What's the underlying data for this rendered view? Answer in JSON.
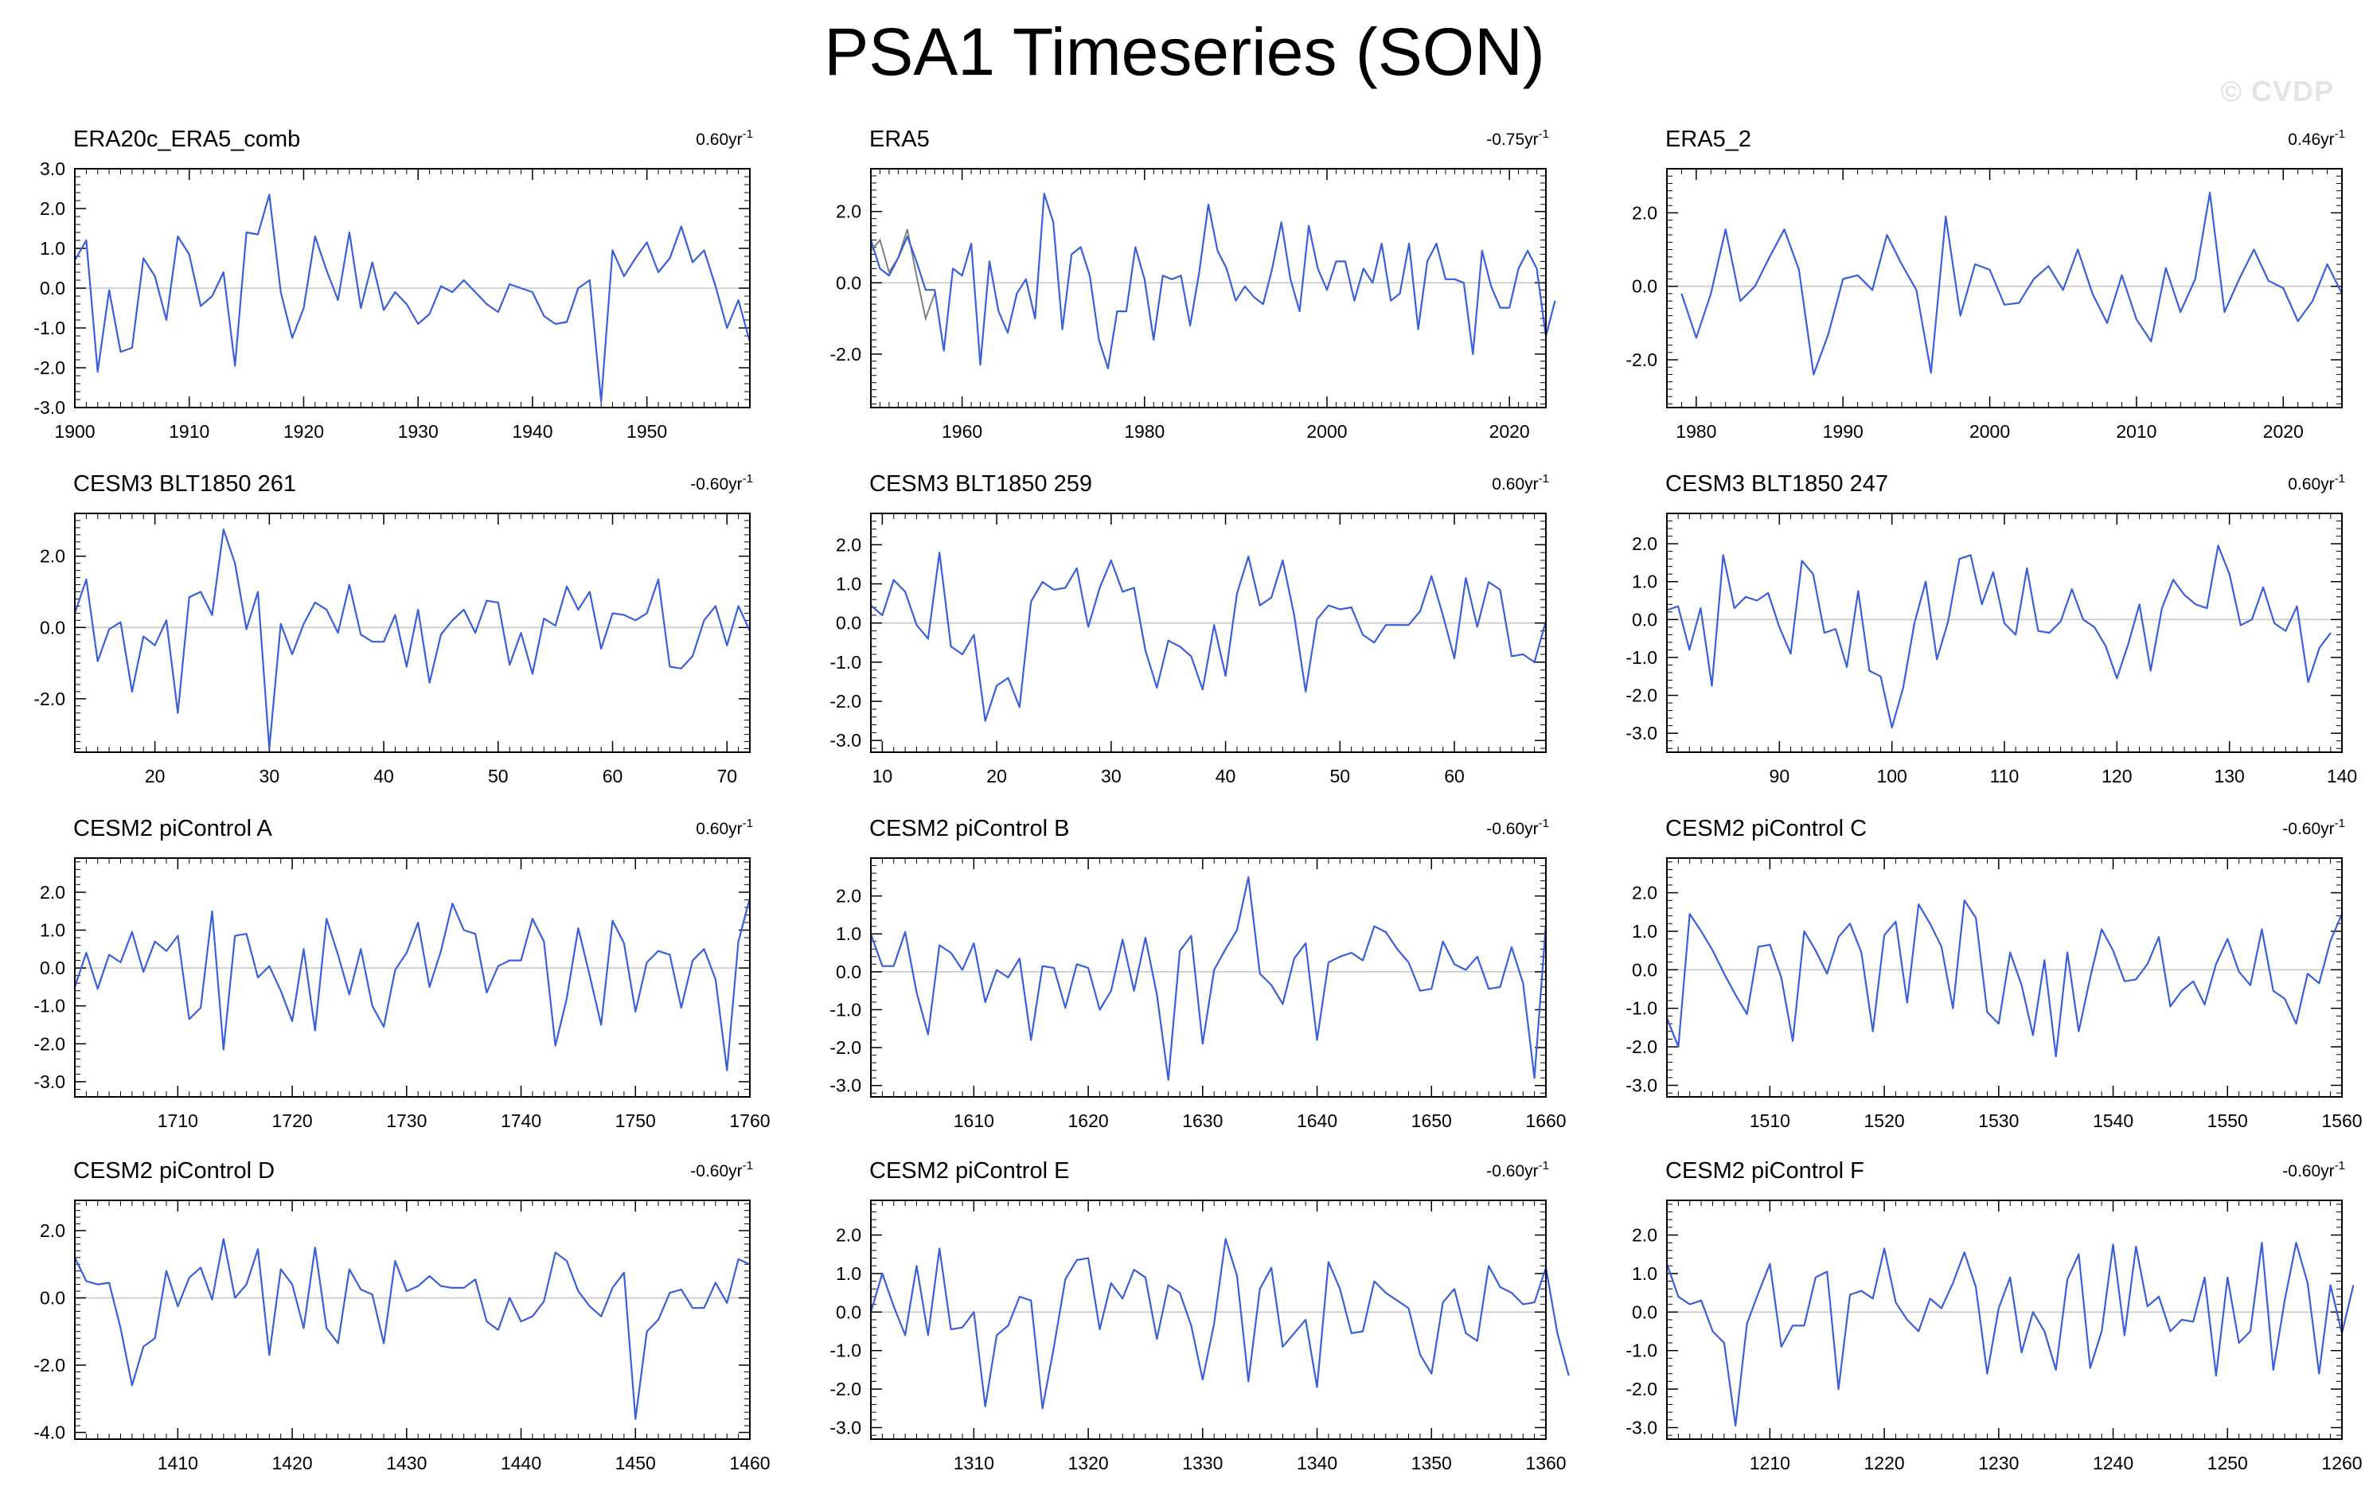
{
  "title": "PSA1 Timeseries (SON)",
  "watermark": "© CVDP",
  "colors": {
    "line": "#3a5fd9",
    "ref_line": "#808080",
    "zero_line": "#c8c8c8",
    "axis": "#000000"
  },
  "chart_data": [
    {
      "type": "line",
      "title": "ERA20c_ERA5_comb",
      "trend_value": "0.60",
      "trend_unit": "yr",
      "trend_exp": "-1",
      "xlim": [
        1900,
        1959
      ],
      "ylim": [
        -3,
        3
      ],
      "yticks": [
        -3,
        -2,
        -1,
        0,
        1,
        2,
        3
      ],
      "ytick_decimals": 1,
      "xticks": [
        1900,
        1910,
        1920,
        1930,
        1940,
        1950
      ],
      "x_start": 1900,
      "values": [
        0.7,
        1.2,
        -2.1,
        -0.05,
        -1.6,
        -1.5,
        0.75,
        0.3,
        -0.8,
        1.3,
        0.85,
        -0.45,
        -0.2,
        0.4,
        -1.95,
        1.4,
        1.35,
        2.35,
        -0.1,
        -1.25,
        -0.5,
        1.3,
        0.45,
        -0.3,
        1.4,
        -0.5,
        0.65,
        -0.55,
        -0.1,
        -0.4,
        -0.9,
        -0.65,
        0.05,
        -0.1,
        0.2,
        -0.1,
        -0.4,
        -0.6,
        0.1,
        0.0,
        -0.1,
        -0.7,
        -0.9,
        -0.85,
        0.0,
        0.2,
        -2.85,
        0.95,
        0.3,
        0.75,
        1.15,
        0.4,
        0.75,
        1.55,
        0.65,
        0.95,
        0.05,
        -1.0,
        -0.3,
        -1.35
      ],
      "grid": false
    },
    {
      "type": "line",
      "title": "ERA5",
      "trend_value": "-0.75",
      "trend_unit": "yr",
      "trend_exp": "-1",
      "xlim": [
        1950,
        2024
      ],
      "ylim": [
        -3.5,
        3.2
      ],
      "yticks": [
        -2,
        0,
        2
      ],
      "ytick_decimals": 1,
      "xticks": [
        1960,
        1980,
        2000,
        2020
      ],
      "x_start": 1950,
      "values": [
        1.2,
        0.4,
        0.2,
        0.7,
        1.3,
        0.6,
        -0.2,
        -0.2,
        -1.9,
        0.4,
        0.2,
        1.1,
        -2.3,
        0.6,
        -0.8,
        -1.4,
        -0.3,
        0.1,
        -1.0,
        2.5,
        1.7,
        -1.3,
        0.8,
        1.0,
        0.2,
        -1.6,
        -2.4,
        -0.8,
        -0.8,
        1.0,
        0.1,
        -1.6,
        0.2,
        0.1,
        0.2,
        -1.2,
        0.3,
        2.2,
        0.9,
        0.4,
        -0.5,
        -0.1,
        -0.4,
        -0.6,
        0.4,
        1.7,
        0.1,
        -0.8,
        1.6,
        0.4,
        -0.2,
        0.6,
        0.6,
        -0.5,
        0.4,
        0.0,
        1.1,
        -0.5,
        -0.3,
        1.1,
        -1.3,
        0.6,
        1.1,
        0.1,
        0.1,
        0.0,
        -2.0,
        0.9,
        -0.1,
        -0.7,
        -0.7,
        0.4,
        0.9,
        0.4,
        -1.5,
        -0.5
      ],
      "reference": {
        "x_start": 1950,
        "values": [
          0.9,
          1.2,
          0.3,
          0.7,
          1.5,
          0.2,
          -1.0,
          -0.3
        ]
      },
      "grid": false
    },
    {
      "type": "line",
      "title": "ERA5_2",
      "trend_value": "0.46",
      "trend_unit": "yr",
      "trend_exp": "-1",
      "xlim": [
        1978,
        2024
      ],
      "ylim": [
        -3.3,
        3.2
      ],
      "yticks": [
        -2,
        0,
        2
      ],
      "ytick_decimals": 1,
      "xticks": [
        1980,
        1990,
        2000,
        2010,
        2020
      ],
      "x_start": 1979,
      "values": [
        -0.2,
        -1.4,
        -0.2,
        1.55,
        -0.4,
        0.0,
        0.8,
        1.55,
        0.45,
        -2.4,
        -1.3,
        0.2,
        0.3,
        -0.1,
        1.4,
        0.6,
        -0.1,
        -2.35,
        1.9,
        -0.8,
        0.6,
        0.45,
        -0.5,
        -0.45,
        0.2,
        0.55,
        -0.1,
        1.0,
        -0.2,
        -1.0,
        0.3,
        -0.9,
        -1.5,
        0.5,
        -0.7,
        0.2,
        2.55,
        -0.7,
        0.2,
        1.0,
        0.15,
        -0.05,
        -0.95,
        -0.4,
        0.6,
        -0.2
      ],
      "grid": false
    },
    {
      "type": "line",
      "title": "CESM3 BLT1850 261",
      "trend_value": "-0.60",
      "trend_unit": "yr",
      "trend_exp": "-1",
      "xlim": [
        13,
        72
      ],
      "ylim": [
        -3.5,
        3.2
      ],
      "yticks": [
        -2,
        0,
        2
      ],
      "ytick_decimals": 1,
      "xticks": [
        20,
        30,
        40,
        50,
        60,
        70
      ],
      "x_start": 13,
      "values": [
        0.4,
        1.35,
        -0.95,
        -0.05,
        0.15,
        -1.8,
        -0.25,
        -0.5,
        0.2,
        -2.4,
        0.85,
        1.0,
        0.35,
        2.75,
        1.8,
        -0.05,
        1.0,
        -3.4,
        0.1,
        -0.75,
        0.1,
        0.7,
        0.5,
        -0.15,
        1.2,
        -0.2,
        -0.4,
        -0.4,
        0.35,
        -1.1,
        0.5,
        -1.55,
        -0.2,
        0.2,
        0.5,
        -0.15,
        0.75,
        0.7,
        -1.05,
        -0.15,
        -1.3,
        0.25,
        0.05,
        1.15,
        0.5,
        1.0,
        -0.6,
        0.4,
        0.35,
        0.2,
        0.4,
        1.35,
        -1.1,
        -1.15,
        -0.8,
        0.2,
        0.6,
        -0.5,
        0.6,
        -0.1
      ],
      "grid": false
    },
    {
      "type": "line",
      "title": "CESM3 BLT1850 259",
      "trend_value": "0.60",
      "trend_unit": "yr",
      "trend_exp": "-1",
      "xlim": [
        9,
        68
      ],
      "ylim": [
        -3.3,
        2.8
      ],
      "yticks": [
        -3,
        -2,
        -1,
        0,
        1,
        2
      ],
      "ytick_decimals": 1,
      "xticks": [
        10,
        20,
        30,
        40,
        50,
        60
      ],
      "x_start": 9,
      "values": [
        0.45,
        0.2,
        1.1,
        0.8,
        -0.05,
        -0.4,
        1.8,
        -0.6,
        -0.8,
        -0.3,
        -2.5,
        -1.6,
        -1.4,
        -2.15,
        0.55,
        1.05,
        0.85,
        0.9,
        1.4,
        -0.1,
        0.9,
        1.6,
        0.8,
        0.9,
        -0.7,
        -1.65,
        -0.45,
        -0.6,
        -0.85,
        -1.7,
        -0.05,
        -1.35,
        0.75,
        1.7,
        0.45,
        0.65,
        1.6,
        0.2,
        -1.75,
        0.1,
        0.45,
        0.35,
        0.4,
        -0.3,
        -0.5,
        -0.05,
        -0.05,
        -0.05,
        0.3,
        1.2,
        0.2,
        -0.9,
        1.15,
        -0.1,
        1.05,
        0.85,
        -0.85,
        -0.8,
        -1.0,
        0.05
      ],
      "grid": false
    },
    {
      "type": "line",
      "title": "CESM3 BLT1850 247",
      "trend_value": "0.60",
      "trend_unit": "yr",
      "trend_exp": "-1",
      "xlim": [
        80,
        140
      ],
      "ylim": [
        -3.5,
        2.8
      ],
      "yticks": [
        -3,
        -2,
        -1,
        0,
        1,
        2
      ],
      "ytick_decimals": 1,
      "xticks": [
        90,
        100,
        110,
        120,
        130,
        140
      ],
      "x_start": 80,
      "values": [
        0.25,
        0.35,
        -0.8,
        0.3,
        -1.75,
        1.7,
        0.3,
        0.6,
        0.5,
        0.7,
        -0.2,
        -0.9,
        1.55,
        1.2,
        -0.35,
        -0.25,
        -1.25,
        0.75,
        -1.35,
        -1.5,
        -2.85,
        -1.8,
        -0.1,
        1.0,
        -1.05,
        -0.05,
        1.6,
        1.7,
        0.4,
        1.25,
        -0.1,
        -0.4,
        1.35,
        -0.3,
        -0.35,
        -0.05,
        0.8,
        0.0,
        -0.2,
        -0.7,
        -1.55,
        -0.65,
        0.4,
        -1.35,
        0.3,
        1.05,
        0.65,
        0.4,
        0.3,
        1.95,
        1.2,
        -0.15,
        0.0,
        0.85,
        -0.1,
        -0.3,
        0.35,
        -1.65,
        -0.75,
        -0.35
      ],
      "grid": false
    },
    {
      "type": "line",
      "title": "CESM2 piControl A",
      "trend_value": "0.60",
      "trend_unit": "yr",
      "trend_exp": "-1",
      "xlim": [
        1701,
        1760
      ],
      "ylim": [
        -3.4,
        2.9
      ],
      "yticks": [
        -3,
        -2,
        -1,
        0,
        1,
        2
      ],
      "ytick_decimals": 1,
      "xticks": [
        1710,
        1720,
        1730,
        1740,
        1750,
        1760
      ],
      "x_start": 1701,
      "values": [
        -0.5,
        0.4,
        -0.55,
        0.35,
        0.15,
        0.95,
        -0.1,
        0.7,
        0.45,
        0.85,
        -1.35,
        -1.05,
        1.5,
        -2.15,
        0.85,
        0.9,
        -0.25,
        0.05,
        -0.6,
        -1.4,
        0.5,
        -1.65,
        1.3,
        0.35,
        -0.7,
        0.5,
        -1.0,
        -1.55,
        -0.05,
        0.4,
        1.2,
        -0.5,
        0.45,
        1.7,
        1.0,
        0.9,
        -0.65,
        0.05,
        0.2,
        0.2,
        1.3,
        0.7,
        -2.05,
        -0.8,
        1.05,
        -0.2,
        -1.5,
        1.25,
        0.65,
        -1.15,
        0.15,
        0.45,
        0.35,
        -1.05,
        0.2,
        0.5,
        -0.3,
        -2.7,
        0.7,
        1.85
      ],
      "grid": false
    },
    {
      "type": "line",
      "title": "CESM2 piControl B",
      "trend_value": "-0.60",
      "trend_unit": "yr",
      "trend_exp": "-1",
      "xlim": [
        1601,
        1660
      ],
      "ylim": [
        -3.3,
        3.0
      ],
      "yticks": [
        -3,
        -2,
        -1,
        0,
        1,
        2
      ],
      "ytick_decimals": 1,
      "xticks": [
        1610,
        1620,
        1630,
        1640,
        1650,
        1660
      ],
      "x_start": 1601,
      "values": [
        1.0,
        0.15,
        0.15,
        1.05,
        -0.55,
        -1.65,
        0.7,
        0.5,
        0.05,
        0.75,
        -0.8,
        0.05,
        -0.15,
        0.35,
        -1.8,
        0.15,
        0.1,
        -0.95,
        0.2,
        0.1,
        -1.0,
        -0.5,
        0.85,
        -0.5,
        0.9,
        -0.6,
        -2.85,
        0.55,
        0.95,
        -1.9,
        0.05,
        0.6,
        1.1,
        2.5,
        -0.05,
        -0.35,
        -0.85,
        0.35,
        0.75,
        -1.8,
        0.25,
        0.4,
        0.5,
        0.3,
        1.2,
        1.05,
        0.6,
        0.25,
        -0.5,
        -0.45,
        0.8,
        0.2,
        0.05,
        0.4,
        -0.45,
        -0.4,
        0.65,
        -0.3,
        -2.8,
        1.25
      ],
      "grid": false
    },
    {
      "type": "line",
      "title": "CESM2 piControl C",
      "trend_value": "-0.60",
      "trend_unit": "yr",
      "trend_exp": "-1",
      "xlim": [
        1501,
        1560
      ],
      "ylim": [
        -3.3,
        2.9
      ],
      "yticks": [
        -3,
        -2,
        -1,
        0,
        1,
        2
      ],
      "ytick_decimals": 1,
      "xticks": [
        1510,
        1520,
        1530,
        1540,
        1550,
        1560
      ],
      "x_start": 1501,
      "values": [
        -1.25,
        -2.0,
        1.45,
        1.0,
        0.5,
        -0.1,
        -0.65,
        -1.15,
        0.6,
        0.65,
        -0.2,
        -1.85,
        1.0,
        0.5,
        -0.1,
        0.85,
        1.2,
        0.45,
        -1.6,
        0.9,
        1.25,
        -0.85,
        1.7,
        1.2,
        0.6,
        -1.0,
        1.8,
        1.35,
        -1.1,
        -1.4,
        0.45,
        -0.4,
        -1.7,
        0.25,
        -2.25,
        0.45,
        -1.6,
        -0.2,
        1.05,
        0.5,
        -0.3,
        -0.25,
        0.15,
        0.85,
        -0.95,
        -0.55,
        -0.3,
        -0.9,
        0.15,
        0.8,
        -0.05,
        -0.4,
        1.05,
        -0.55,
        -0.75,
        -1.4,
        -0.1,
        -0.35,
        0.75,
        1.45
      ],
      "grid": false
    },
    {
      "type": "line",
      "title": "CESM2 piControl D",
      "trend_value": "-0.60",
      "trend_unit": "yr",
      "trend_exp": "-1",
      "xlim": [
        1401,
        1460
      ],
      "ylim": [
        -4.2,
        2.9
      ],
      "yticks": [
        -4,
        -2,
        0,
        2
      ],
      "ytick_decimals": 1,
      "xticks": [
        1410,
        1420,
        1430,
        1440,
        1450,
        1460
      ],
      "x_start": 1401,
      "values": [
        1.2,
        0.5,
        0.4,
        0.45,
        -0.9,
        -2.6,
        -1.45,
        -1.2,
        0.8,
        -0.25,
        0.6,
        0.9,
        -0.05,
        1.75,
        0.0,
        0.4,
        1.45,
        -1.7,
        0.85,
        0.4,
        -0.9,
        1.5,
        -0.9,
        -1.35,
        0.85,
        0.25,
        0.1,
        -1.35,
        1.1,
        0.2,
        0.35,
        0.65,
        0.35,
        0.3,
        0.3,
        0.55,
        -0.7,
        -0.95,
        0.0,
        -0.7,
        -0.55,
        -0.1,
        1.35,
        1.1,
        0.2,
        -0.25,
        -0.55,
        0.3,
        0.75,
        -3.6,
        -1.0,
        -0.65,
        0.15,
        0.25,
        -0.3,
        -0.3,
        0.45,
        -0.15,
        1.15,
        1.0
      ],
      "grid": false
    },
    {
      "type": "line",
      "title": "CESM2 piControl E",
      "trend_value": "-0.60",
      "trend_unit": "yr",
      "trend_exp": "-1",
      "xlim": [
        1301,
        1360
      ],
      "ylim": [
        -3.3,
        2.9
      ],
      "yticks": [
        -3,
        -2,
        -1,
        0,
        1,
        2
      ],
      "ytick_decimals": 1,
      "xticks": [
        1310,
        1320,
        1330,
        1340,
        1350,
        1360
      ],
      "x_start": 1301,
      "values": [
        0.0,
        1.0,
        0.15,
        -0.6,
        1.2,
        -0.6,
        1.65,
        -0.45,
        -0.4,
        0.0,
        -2.45,
        -0.6,
        -0.35,
        0.4,
        0.3,
        -2.5,
        -0.9,
        0.85,
        1.35,
        1.4,
        -0.45,
        0.75,
        0.35,
        1.1,
        0.9,
        -0.7,
        0.7,
        0.5,
        -0.35,
        -1.75,
        -0.3,
        1.9,
        0.95,
        -1.8,
        0.6,
        1.15,
        -0.9,
        -0.55,
        -0.2,
        -1.95,
        1.3,
        0.6,
        -0.55,
        -0.5,
        0.8,
        0.5,
        0.3,
        0.1,
        -1.1,
        -1.6,
        0.25,
        0.6,
        -0.55,
        -0.75,
        1.2,
        0.65,
        0.5,
        0.2,
        0.25,
        1.15,
        -0.55,
        -1.65
      ],
      "grid": false
    },
    {
      "type": "line",
      "title": "CESM2 piControl F",
      "trend_value": "-0.60",
      "trend_unit": "yr",
      "trend_exp": "-1",
      "xlim": [
        1201,
        1260
      ],
      "ylim": [
        -3.3,
        2.9
      ],
      "yticks": [
        -3,
        -2,
        -1,
        0,
        1,
        2
      ],
      "ytick_decimals": 1,
      "xticks": [
        1210,
        1220,
        1230,
        1240,
        1250,
        1260
      ],
      "x_start": 1201,
      "values": [
        1.25,
        0.4,
        0.2,
        0.3,
        -0.5,
        -0.8,
        -2.95,
        -0.3,
        0.5,
        1.25,
        -0.9,
        -0.35,
        -0.35,
        0.9,
        1.05,
        -2.0,
        0.45,
        0.55,
        0.35,
        1.65,
        0.25,
        -0.2,
        -0.5,
        0.35,
        0.1,
        0.75,
        1.55,
        0.65,
        -1.6,
        0.1,
        0.9,
        -1.05,
        0.0,
        -0.5,
        -1.5,
        0.85,
        1.5,
        -1.45,
        -0.5,
        1.75,
        -0.6,
        1.7,
        0.15,
        0.4,
        -0.5,
        -0.2,
        -0.25,
        0.9,
        -1.65,
        0.9,
        -0.8,
        -0.5,
        1.8,
        -1.5,
        0.3,
        1.8,
        0.75,
        -1.6,
        0.7,
        -0.55,
        0.7
      ],
      "grid": false
    }
  ]
}
